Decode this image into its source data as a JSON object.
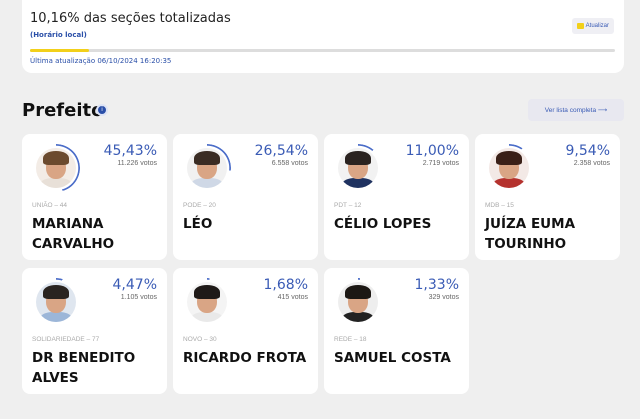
{
  "status": {
    "title": "10,16% das seções totalizadas",
    "local_time_label": "(Horário local)",
    "progress_percent": 10.16,
    "last_update": "Última atualização 06/10/2024 16:20:35",
    "refresh_label": "Atualizar",
    "progress_color": "#f2d01a"
  },
  "section": {
    "title": "Prefeito",
    "info_icon": "info-icon",
    "full_list_label": "Ver lista completa ⟶"
  },
  "candidates": [
    {
      "name": "MARIANA CARVALHO",
      "party": "UNIÃO – 44",
      "percent": "45,43%",
      "votes": "11.226 votos",
      "share": 45.43
    },
    {
      "name": "LÉO",
      "party": "PODE – 20",
      "percent": "26,54%",
      "votes": "6.558 votos",
      "share": 26.54
    },
    {
      "name": "CÉLIO LOPES",
      "party": "PDT – 12",
      "percent": "11,00%",
      "votes": "2.719 votos",
      "share": 11.0
    },
    {
      "name": "JUÍZA EUMA TOURINHO",
      "party": "MDB – 15",
      "percent": "9,54%",
      "votes": "2.358 votos",
      "share": 9.54
    },
    {
      "name": "DR BENEDITO ALVES",
      "party": "SOLIDARIEDADE – 77",
      "percent": "4,47%",
      "votes": "1.105 votos",
      "share": 4.47
    },
    {
      "name": "RICARDO FROTA",
      "party": "NOVO – 30",
      "percent": "1,68%",
      "votes": "415 votos",
      "share": 1.68
    },
    {
      "name": "SAMUEL COSTA",
      "party": "REDE – 18",
      "percent": "1,33%",
      "votes": "329 votos",
      "share": 1.33
    }
  ],
  "colors": {
    "accent": "#3a5bb5",
    "ring": "#4a6cc8"
  }
}
